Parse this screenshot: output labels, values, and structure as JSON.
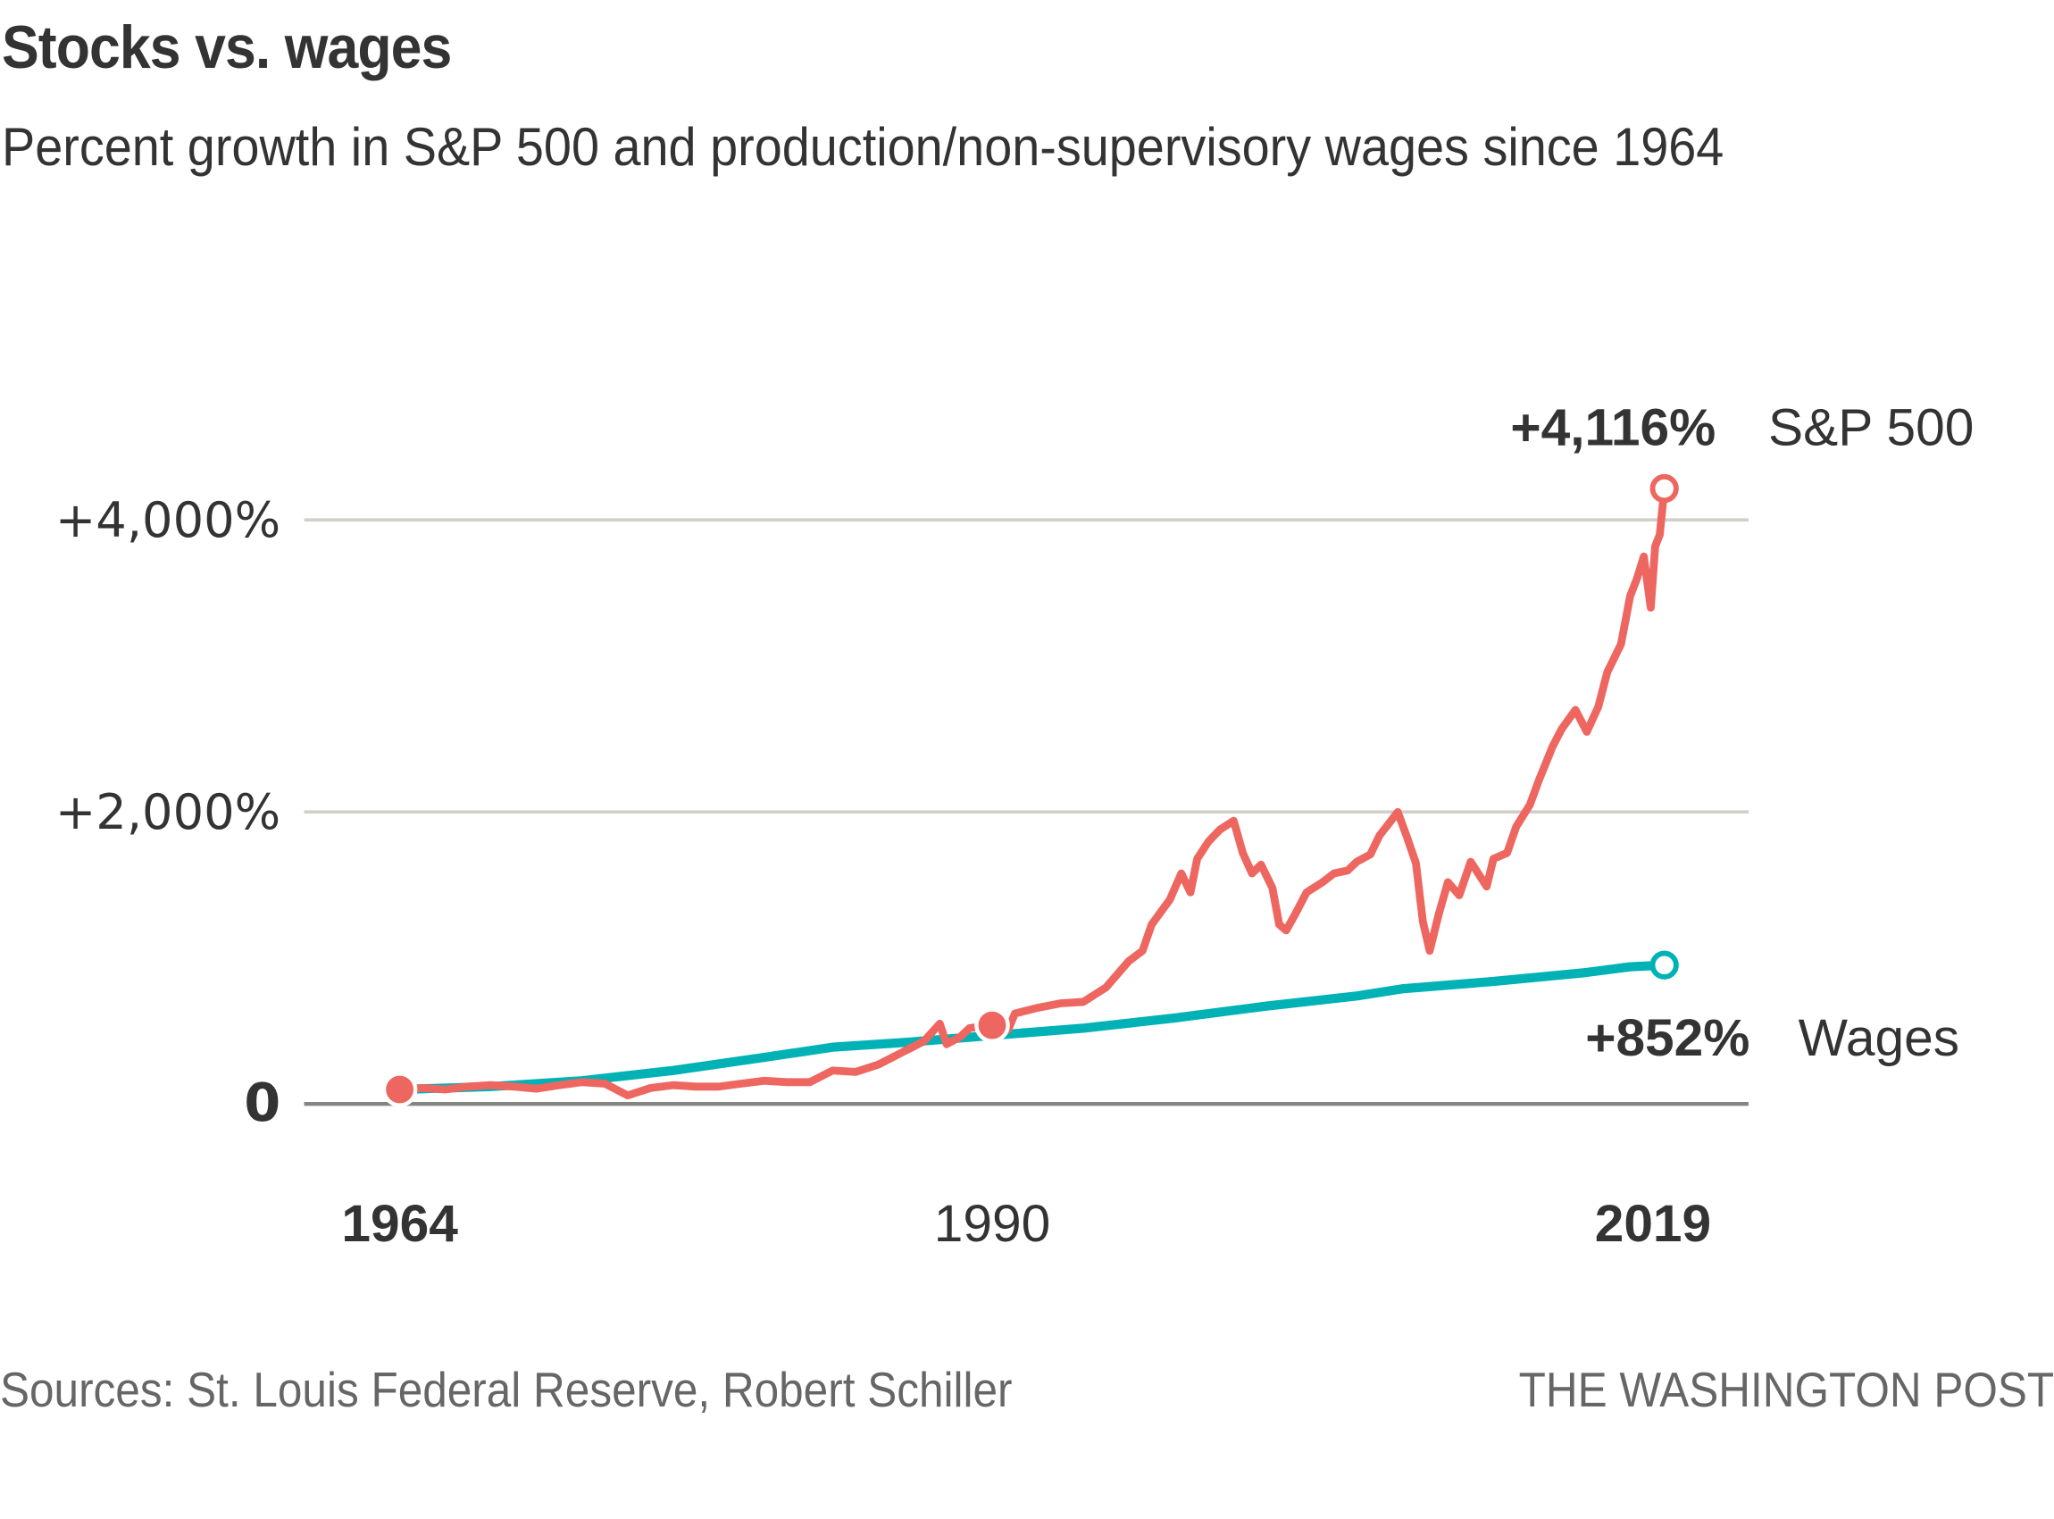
{
  "header": {
    "title": "Stocks vs. wages",
    "subtitle": "Percent growth in S&P 500 and production/non-supervisory wages since 1964"
  },
  "footer": {
    "source": "Sources: St. Louis Federal Reserve, Robert Schiller",
    "credit": "THE WASHINGTON POST"
  },
  "chart_data": {
    "type": "line",
    "title": "Stocks vs. wages",
    "subtitle": "Percent growth in S&P 500 and production/non-supervisory wages since 1964",
    "xlabel": "",
    "ylabel": "",
    "xlim": [
      1960,
      2023
    ],
    "ylim": [
      -100,
      4700
    ],
    "grid": true,
    "legend": "direct-labels-right",
    "y_ticks": [
      {
        "value": 0,
        "label": "0",
        "bold": true
      },
      {
        "value": 2000,
        "label": "+2,000%",
        "bold": false
      },
      {
        "value": 4000,
        "label": "+4,000%",
        "bold": false
      }
    ],
    "x_ticks": [
      {
        "value": 1964,
        "label": "1964",
        "bold": true
      },
      {
        "value": 1990,
        "label": "1990",
        "bold": false
      },
      {
        "value": 2019,
        "label": "2019",
        "bold": true
      }
    ],
    "series": [
      {
        "name": "S&P 500",
        "color": "#ee6660",
        "end_label": "+4,116%",
        "end_value": 4116,
        "points": [
          [
            1964,
            0
          ],
          [
            1965,
            10
          ],
          [
            1966,
            0
          ],
          [
            1967,
            20
          ],
          [
            1968,
            30
          ],
          [
            1969,
            20
          ],
          [
            1970,
            5
          ],
          [
            1971,
            30
          ],
          [
            1972,
            50
          ],
          [
            1973,
            40
          ],
          [
            1974,
            -40
          ],
          [
            1975,
            10
          ],
          [
            1976,
            30
          ],
          [
            1977,
            20
          ],
          [
            1978,
            20
          ],
          [
            1979,
            40
          ],
          [
            1980,
            60
          ],
          [
            1981,
            50
          ],
          [
            1982,
            50
          ],
          [
            1983,
            130
          ],
          [
            1984,
            120
          ],
          [
            1985,
            170
          ],
          [
            1986,
            250
          ],
          [
            1987,
            330
          ],
          [
            1987.7,
            450
          ],
          [
            1988,
            310
          ],
          [
            1988.6,
            360
          ],
          [
            1989,
            420
          ],
          [
            1990,
            440
          ],
          [
            1990.7,
            410
          ],
          [
            1991,
            520
          ],
          [
            1992,
            560
          ],
          [
            1993,
            590
          ],
          [
            1994,
            600
          ],
          [
            1995,
            700
          ],
          [
            1996,
            880
          ],
          [
            1996.6,
            950
          ],
          [
            1997,
            1130
          ],
          [
            1997.8,
            1300
          ],
          [
            1998.3,
            1480
          ],
          [
            1998.7,
            1350
          ],
          [
            1999,
            1580
          ],
          [
            1999.5,
            1700
          ],
          [
            2000,
            1780
          ],
          [
            2000.6,
            1840
          ],
          [
            2001,
            1620
          ],
          [
            2001.4,
            1480
          ],
          [
            2001.8,
            1540
          ],
          [
            2002.3,
            1380
          ],
          [
            2002.6,
            1130
          ],
          [
            2002.9,
            1090
          ],
          [
            2003.3,
            1200
          ],
          [
            2003.8,
            1350
          ],
          [
            2004.5,
            1420
          ],
          [
            2005,
            1480
          ],
          [
            2005.6,
            1500
          ],
          [
            2006,
            1560
          ],
          [
            2006.6,
            1610
          ],
          [
            2007,
            1740
          ],
          [
            2007.4,
            1820
          ],
          [
            2007.8,
            1900
          ],
          [
            2008.2,
            1730
          ],
          [
            2008.6,
            1550
          ],
          [
            2008.9,
            1150
          ],
          [
            2009.2,
            950
          ],
          [
            2009.6,
            1200
          ],
          [
            2010,
            1420
          ],
          [
            2010.5,
            1330
          ],
          [
            2011,
            1560
          ],
          [
            2011.7,
            1390
          ],
          [
            2012,
            1580
          ],
          [
            2012.6,
            1620
          ],
          [
            2013,
            1800
          ],
          [
            2013.6,
            1950
          ],
          [
            2014,
            2120
          ],
          [
            2014.6,
            2350
          ],
          [
            2015,
            2470
          ],
          [
            2015.6,
            2600
          ],
          [
            2016.1,
            2450
          ],
          [
            2016.6,
            2620
          ],
          [
            2017,
            2860
          ],
          [
            2017.6,
            3050
          ],
          [
            2018,
            3380
          ],
          [
            2018.3,
            3500
          ],
          [
            2018.6,
            3650
          ],
          [
            2018.9,
            3300
          ],
          [
            2019.1,
            3720
          ],
          [
            2019.3,
            3800
          ],
          [
            2019.5,
            4116
          ]
        ]
      },
      {
        "name": "Wages",
        "color": "#00b2b6",
        "end_label": "+852%",
        "end_value": 852,
        "points": [
          [
            1964,
            0
          ],
          [
            1968,
            20
          ],
          [
            1972,
            60
          ],
          [
            1976,
            130
          ],
          [
            1980,
            220
          ],
          [
            1983,
            290
          ],
          [
            1986,
            320
          ],
          [
            1990,
            370
          ],
          [
            1994,
            420
          ],
          [
            1998,
            490
          ],
          [
            2002,
            570
          ],
          [
            2006,
            640
          ],
          [
            2008,
            690
          ],
          [
            2012,
            740
          ],
          [
            2016,
            800
          ],
          [
            2018,
            840
          ],
          [
            2019.5,
            852
          ]
        ]
      }
    ],
    "markers": [
      {
        "series": "S&P 500",
        "x": 1964,
        "value": 0,
        "style": "filled"
      },
      {
        "series": "S&P 500",
        "x": 1990,
        "value": 440,
        "style": "filled"
      },
      {
        "series": "S&P 500",
        "x": 2019.5,
        "value": 4116,
        "style": "hollow"
      },
      {
        "series": "Wages",
        "x": 2019.5,
        "value": 852,
        "style": "hollow"
      }
    ]
  }
}
